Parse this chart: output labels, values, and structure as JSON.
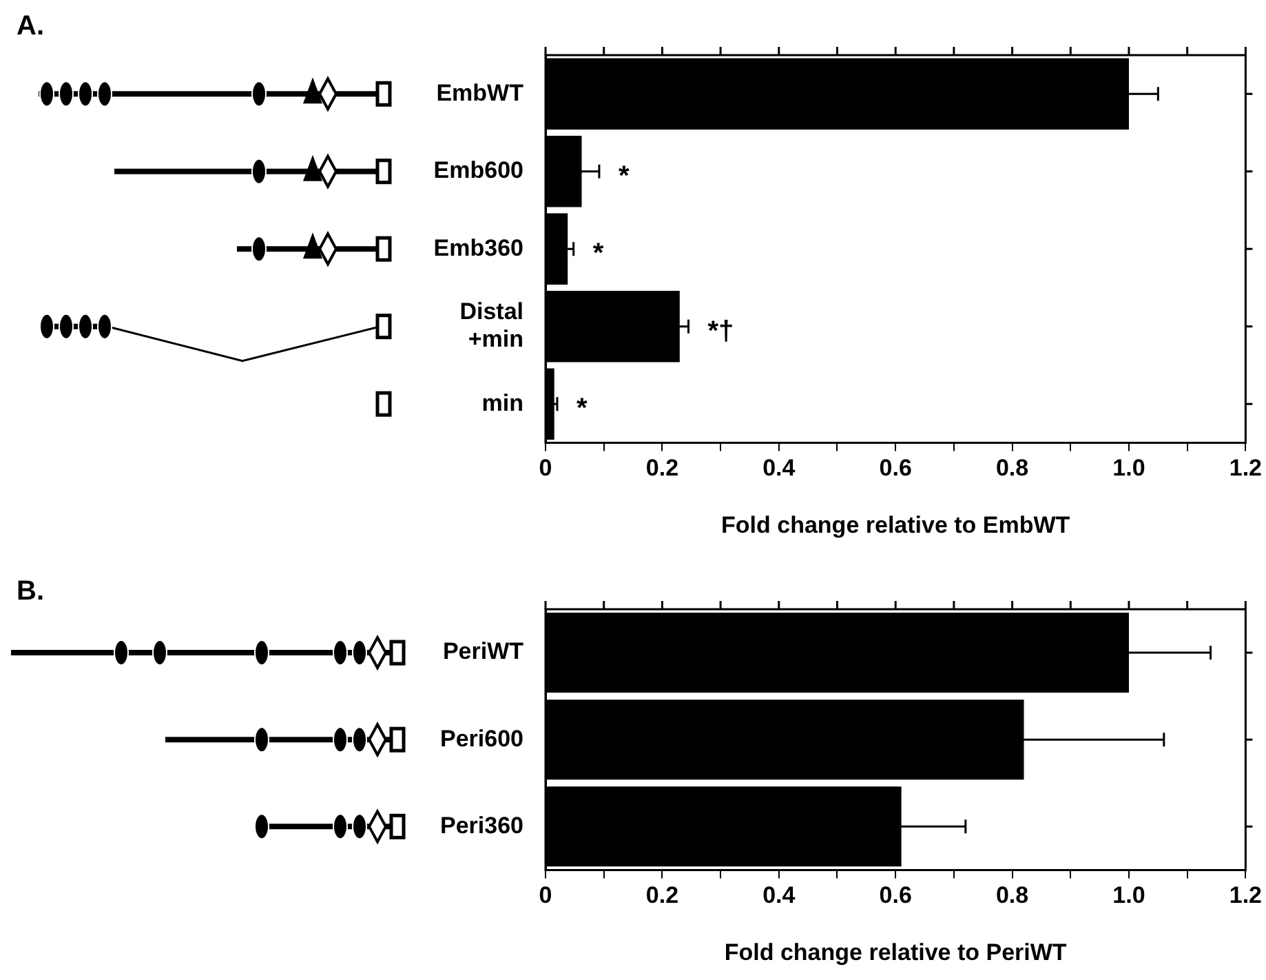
{
  "chart_data": [
    {
      "type": "bar",
      "orientation": "horizontal",
      "xlabel": "Fold change relative to EmbWT",
      "categories": [
        "EmbWT",
        "Emb600",
        "Emb360",
        "Distal +min",
        "min"
      ],
      "values": [
        1.0,
        0.062,
        0.038,
        0.23,
        0.015
      ],
      "errors": [
        0.05,
        0.03,
        0.01,
        0.015,
        0.005
      ],
      "color": "#000000",
      "xlim": [
        0,
        1.2
      ],
      "xticks": [
        0,
        {
          "value": 0.1,
          "label": null
        },
        0.2,
        {
          "value": 0.3,
          "label": null
        },
        0.4,
        {
          "value": 0.5,
          "label": null
        },
        0.6,
        {
          "value": 0.7,
          "label": null
        },
        0.8,
        {
          "value": 0.9,
          "label": null
        },
        {
          "value": 1.0,
          "label": "1.0"
        },
        {
          "value": 1.1,
          "label": null
        },
        1.2
      ],
      "grid": false,
      "legend": false,
      "annotations": [
        "A.",
        {
          "text": "*",
          "x": 0.062,
          "y": "Emb600"
        },
        {
          "text": "*",
          "x": 0.038,
          "y": "Emb360"
        },
        {
          "text": "*†",
          "x": 0.23,
          "y": "Distal +min"
        },
        {
          "text": "*",
          "x": 0.015,
          "y": "min"
        }
      ]
    },
    {
      "type": "bar",
      "orientation": "horizontal",
      "xlabel": "Fold change relative to PeriWT",
      "annotations": [
        "B."
      ],
      "categories": [
        "PeriWT",
        "Peri600",
        "Peri360"
      ],
      "values": [
        1.0,
        0.82,
        0.61
      ],
      "errors": [
        0.14,
        0.24,
        0.11
      ],
      "color": "#000000",
      "xlim": [
        0,
        1.2
      ],
      "xticks": [
        0,
        {
          "value": 0.1,
          "label": null
        },
        0.2,
        {
          "value": 0.3,
          "label": null
        },
        0.4,
        {
          "value": 0.5,
          "label": null
        },
        0.6,
        {
          "value": 0.7,
          "label": null
        },
        0.8,
        {
          "value": 0.9,
          "label": null
        },
        {
          "value": 1.0,
          "label": "1.0"
        },
        {
          "value": 1.1,
          "label": null
        },
        1.2
      ],
      "grid": false,
      "legend": false
    }
  ]
}
